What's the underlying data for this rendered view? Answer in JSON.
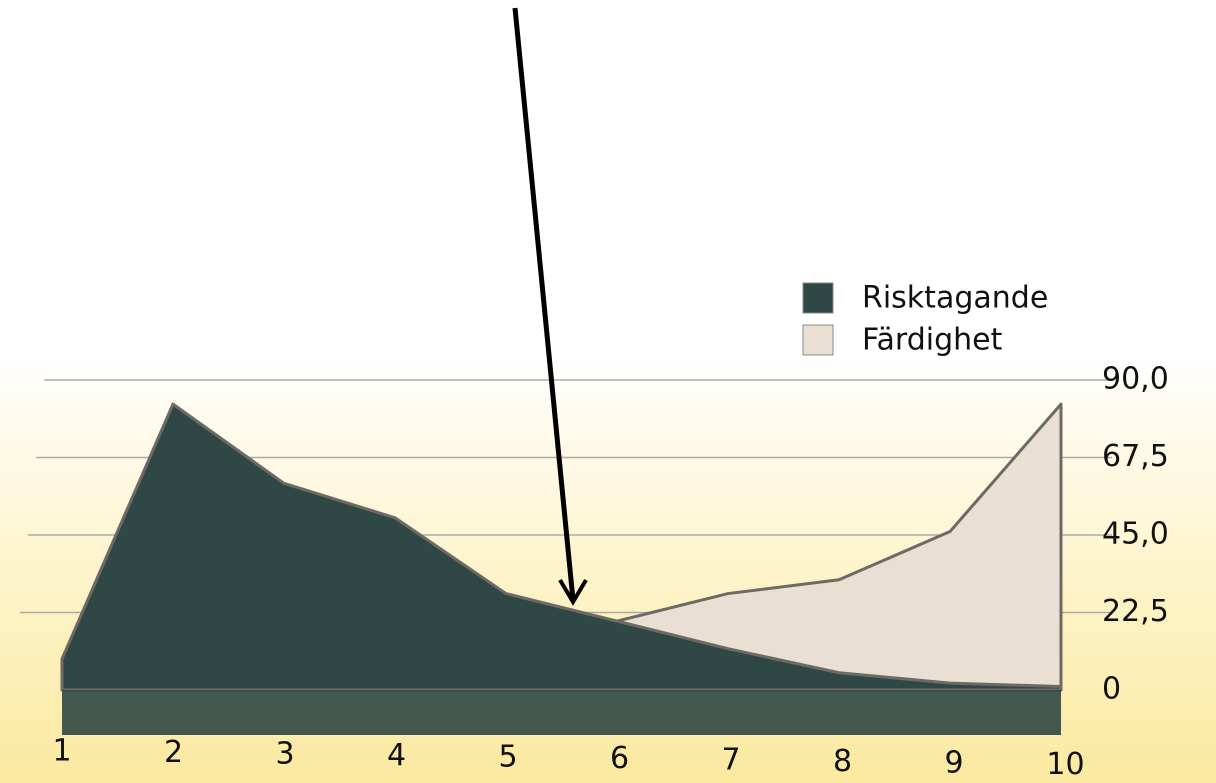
{
  "chart_data": {
    "type": "area",
    "categories": [
      "1",
      "2",
      "3",
      "4",
      "5",
      "6",
      "7",
      "8",
      "9",
      "10"
    ],
    "series": [
      {
        "name": "Risktagande",
        "color": "#2f4745",
        "values": [
          9,
          83,
          60,
          50,
          28,
          20,
          12,
          5,
          2,
          1
        ]
      },
      {
        "name": "Färdighet",
        "color": "#e9dfd2",
        "values": [
          null,
          null,
          null,
          null,
          null,
          20,
          28,
          32,
          46,
          83
        ]
      }
    ],
    "ylim": [
      0,
      90
    ],
    "yticks": [
      0,
      {
        "value": 22.5,
        "label": "22,5"
      },
      {
        "value": 45,
        "label": "45,0"
      },
      {
        "value": 67.5,
        "label": "67,5"
      },
      {
        "value": 90,
        "label": "90,0"
      }
    ],
    "grid": true,
    "legend": "top-right"
  }
}
